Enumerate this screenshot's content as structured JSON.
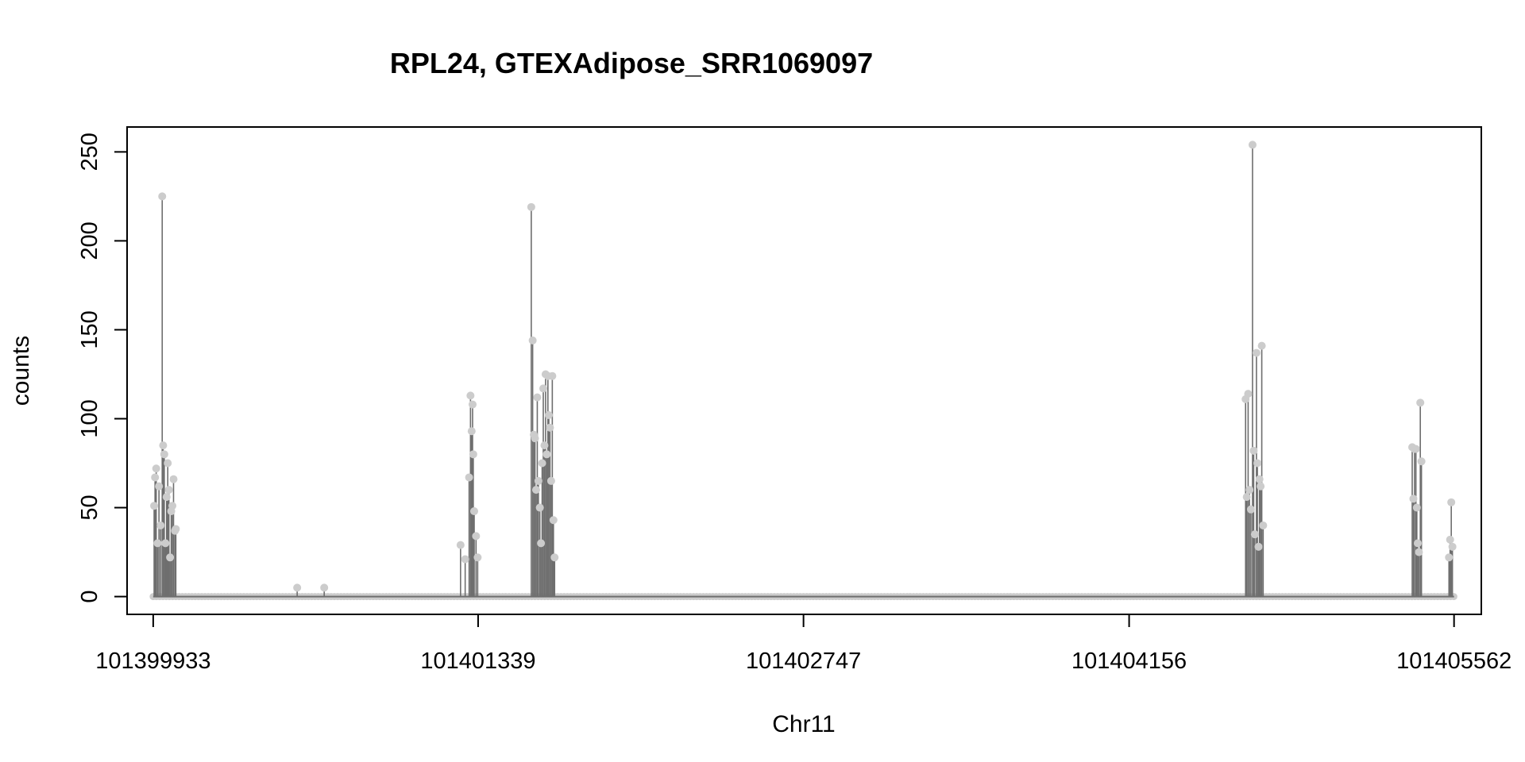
{
  "chart_data": {
    "type": "line",
    "title": "RPL24, GTEXAdipose_SRR1069097",
    "xlabel": "Chr11",
    "ylabel": "counts",
    "xlim": [
      101399820,
      101405680
    ],
    "ylim": [
      -10,
      264
    ],
    "x_ticks": [
      101399933,
      101401339,
      101402747,
      101404156,
      101405562
    ],
    "x_tick_labels": [
      "101399933",
      "101401339",
      "101402747",
      "101404156",
      "101405562"
    ],
    "y_ticks": [
      0,
      50,
      100,
      150,
      200,
      250
    ],
    "y_tick_labels": [
      "0",
      "50",
      "100",
      "150",
      "200",
      "250"
    ],
    "grid": false,
    "legend": "none",
    "point_color": "#cccccc",
    "line_color": "#6e6e6e",
    "peaks": [
      {
        "x": 101399937,
        "y": 51
      },
      {
        "x": 101399941,
        "y": 67
      },
      {
        "x": 101399946,
        "y": 72
      },
      {
        "x": 101399952,
        "y": 30
      },
      {
        "x": 101399958,
        "y": 62
      },
      {
        "x": 101399965,
        "y": 40
      },
      {
        "x": 101399972,
        "y": 225
      },
      {
        "x": 101399976,
        "y": 85
      },
      {
        "x": 101399981,
        "y": 80
      },
      {
        "x": 101399986,
        "y": 30
      },
      {
        "x": 101399991,
        "y": 56
      },
      {
        "x": 101399996,
        "y": 75
      },
      {
        "x": 101400001,
        "y": 60
      },
      {
        "x": 101400006,
        "y": 22
      },
      {
        "x": 101400011,
        "y": 48
      },
      {
        "x": 101400016,
        "y": 51
      },
      {
        "x": 101400021,
        "y": 66
      },
      {
        "x": 101400027,
        "y": 37
      },
      {
        "x": 101400031,
        "y": 38
      },
      {
        "x": 101400556,
        "y": 5
      },
      {
        "x": 101400673,
        "y": 5
      },
      {
        "x": 101401263,
        "y": 29
      },
      {
        "x": 101401283,
        "y": 21
      },
      {
        "x": 101401300,
        "y": 67
      },
      {
        "x": 101401306,
        "y": 113
      },
      {
        "x": 101401311,
        "y": 93
      },
      {
        "x": 101401315,
        "y": 108
      },
      {
        "x": 101401318,
        "y": 80
      },
      {
        "x": 101401322,
        "y": 48
      },
      {
        "x": 101401330,
        "y": 34
      },
      {
        "x": 101401337,
        "y": 22
      },
      {
        "x": 101401569,
        "y": 219
      },
      {
        "x": 101401575,
        "y": 144
      },
      {
        "x": 101401580,
        "y": 91
      },
      {
        "x": 101401585,
        "y": 89
      },
      {
        "x": 101401590,
        "y": 60
      },
      {
        "x": 101401595,
        "y": 112
      },
      {
        "x": 101401600,
        "y": 65
      },
      {
        "x": 101401606,
        "y": 50
      },
      {
        "x": 101401611,
        "y": 30
      },
      {
        "x": 101401616,
        "y": 75
      },
      {
        "x": 101401621,
        "y": 117
      },
      {
        "x": 101401626,
        "y": 85
      },
      {
        "x": 101401631,
        "y": 125
      },
      {
        "x": 101401636,
        "y": 80
      },
      {
        "x": 101401641,
        "y": 124
      },
      {
        "x": 101401645,
        "y": 102
      },
      {
        "x": 101401650,
        "y": 95
      },
      {
        "x": 101401655,
        "y": 65
      },
      {
        "x": 101401660,
        "y": 124
      },
      {
        "x": 101401665,
        "y": 43
      },
      {
        "x": 101401670,
        "y": 22
      },
      {
        "x": 101404660,
        "y": 111
      },
      {
        "x": 101404665,
        "y": 56
      },
      {
        "x": 101404671,
        "y": 114
      },
      {
        "x": 101404677,
        "y": 60
      },
      {
        "x": 101404683,
        "y": 49
      },
      {
        "x": 101404690,
        "y": 254
      },
      {
        "x": 101404695,
        "y": 82
      },
      {
        "x": 101404700,
        "y": 35
      },
      {
        "x": 101404707,
        "y": 137
      },
      {
        "x": 101404711,
        "y": 75
      },
      {
        "x": 101404716,
        "y": 28
      },
      {
        "x": 101404720,
        "y": 66
      },
      {
        "x": 101404725,
        "y": 62
      },
      {
        "x": 101404730,
        "y": 141
      },
      {
        "x": 101404736,
        "y": 40
      },
      {
        "x": 101405381,
        "y": 84
      },
      {
        "x": 101405386,
        "y": 55
      },
      {
        "x": 101405391,
        "y": 83
      },
      {
        "x": 101405397,
        "y": 83
      },
      {
        "x": 101405401,
        "y": 50
      },
      {
        "x": 101405405,
        "y": 30
      },
      {
        "x": 101405410,
        "y": 25
      },
      {
        "x": 101405416,
        "y": 109
      },
      {
        "x": 101405421,
        "y": 76
      },
      {
        "x": 101405540,
        "y": 22
      },
      {
        "x": 101405545,
        "y": 32
      },
      {
        "x": 101405550,
        "y": 53
      },
      {
        "x": 101405555,
        "y": 28
      }
    ]
  }
}
